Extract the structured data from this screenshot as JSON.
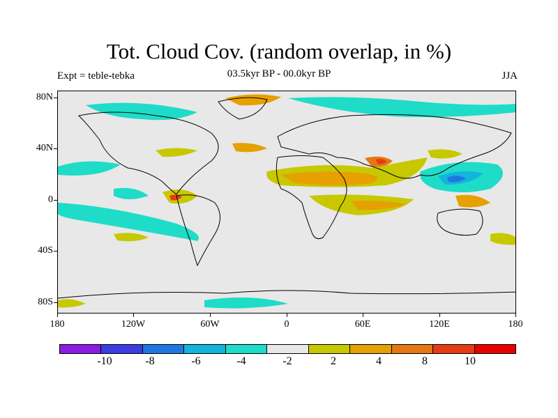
{
  "title": "Tot. Cloud Cov. (random overlap, in %)",
  "subtitle_left": "Expt = teble-tebka",
  "subtitle_center": "03.5kyr BP - 00.0kyr BP",
  "subtitle_right": "JJA",
  "y_ticks": [
    "80N",
    "40N",
    "0",
    "40S",
    "80S"
  ],
  "x_ticks": [
    "180",
    "120W",
    "60W",
    "0",
    "60E",
    "120E",
    "180"
  ],
  "colorbar": {
    "colors": [
      "#8a1ee0",
      "#3c3ce0",
      "#1e78e0",
      "#14b4dc",
      "#1edcc8",
      "#e8e8e8",
      "#c8c800",
      "#e6a000",
      "#e67814",
      "#e63c14",
      "#e60000"
    ],
    "labels": [
      "-10",
      "-8",
      "-6",
      "-4",
      "-2",
      "2",
      "4",
      "8",
      "10"
    ]
  }
}
